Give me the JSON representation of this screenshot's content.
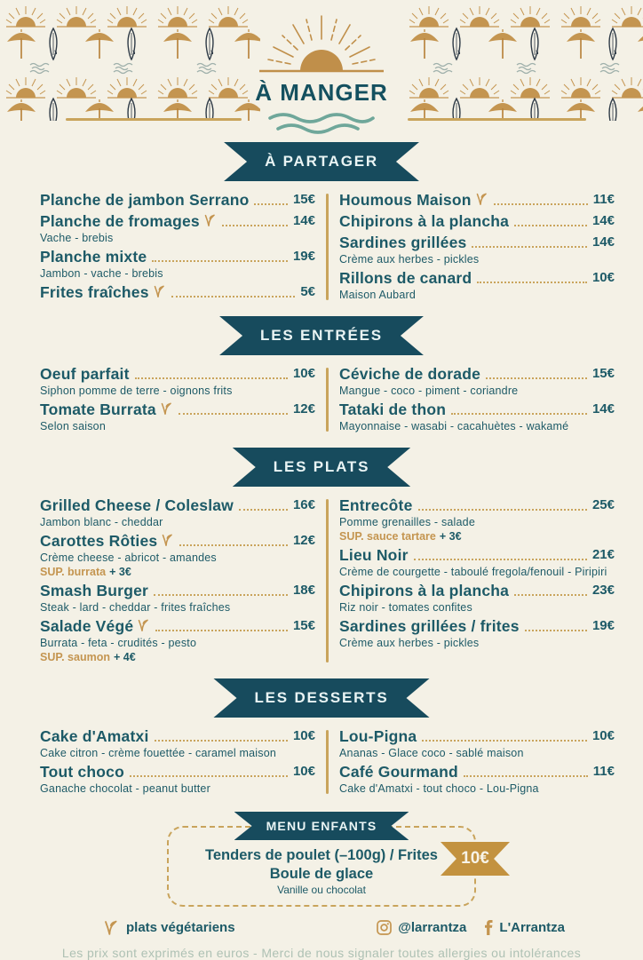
{
  "header": {
    "title": "À MANGER"
  },
  "sections": [
    {
      "title": "À PARTAGER",
      "columns": [
        [
          {
            "name": "Planche de jambon Serrano",
            "price": "15€",
            "veg": false
          },
          {
            "name": "Planche de fromages",
            "price": "14€",
            "veg": true,
            "desc": "Vache - brebis"
          },
          {
            "name": "Planche mixte",
            "price": "19€",
            "veg": false,
            "desc": "Jambon - vache - brebis"
          },
          {
            "name": "Frites fraîches",
            "price": "5€",
            "veg": true
          }
        ],
        [
          {
            "name": "Houmous Maison",
            "price": "11€",
            "veg": true
          },
          {
            "name": "Chipirons à la plancha",
            "price": "14€",
            "veg": false
          },
          {
            "name": "Sardines grillées",
            "price": "14€",
            "veg": false,
            "desc": "Crème aux herbes - pickles"
          },
          {
            "name": "Rillons de canard",
            "price": "10€",
            "veg": false,
            "desc": "Maison Aubard"
          }
        ]
      ]
    },
    {
      "title": "LES ENTRÉES",
      "columns": [
        [
          {
            "name": "Oeuf parfait",
            "price": "10€",
            "veg": false,
            "desc": "Siphon pomme de terre - oignons frits"
          },
          {
            "name": "Tomate Burrata",
            "price": "12€",
            "veg": true,
            "desc": "Selon saison"
          }
        ],
        [
          {
            "name": "Céviche de dorade",
            "price": "15€",
            "veg": false,
            "desc": "Mangue - coco - piment - coriandre"
          },
          {
            "name": "Tataki de thon",
            "price": "14€",
            "veg": false,
            "desc": "Mayonnaise - wasabi - cacahuètes - wakamé"
          }
        ]
      ]
    },
    {
      "title": "LES PLATS",
      "columns": [
        [
          {
            "name": "Grilled Cheese / Coleslaw",
            "price": "16€",
            "veg": false,
            "desc": "Jambon blanc - cheddar"
          },
          {
            "name": "Carottes Rôties",
            "price": "12€",
            "veg": true,
            "desc": "Crème cheese - abricot - amandes",
            "sup": {
              "label": "SUP. burrata",
              "extra": "+ 3€"
            }
          },
          {
            "name": "Smash Burger",
            "price": "18€",
            "veg": false,
            "desc": "Steak - lard - cheddar - frites fraîches"
          },
          {
            "name": "Salade Végé",
            "price": "15€",
            "veg": true,
            "desc": "Burrata - feta - crudités - pesto",
            "sup": {
              "label": "SUP. saumon",
              "extra": "+ 4€"
            }
          }
        ],
        [
          {
            "name": "Entrecôte",
            "price": "25€",
            "veg": false,
            "desc": "Pomme grenailles - salade",
            "sup": {
              "label": "SUP. sauce tartare",
              "extra": "+ 3€"
            }
          },
          {
            "name": "Lieu Noir",
            "price": "21€",
            "veg": false,
            "desc": "Crème de courgette - taboulé fregola/fenouil - Piripiri"
          },
          {
            "name": "Chipirons à la plancha",
            "price": "23€",
            "veg": false,
            "desc": "Riz noir - tomates confites"
          },
          {
            "name": "Sardines grillées / frites",
            "price": "19€",
            "veg": false,
            "desc": "Crème aux herbes - pickles"
          }
        ]
      ]
    },
    {
      "title": "LES DESSERTS",
      "columns": [
        [
          {
            "name": "Cake d'Amatxi",
            "price": "10€",
            "veg": false,
            "desc": "Cake citron - crème fouettée - caramel maison"
          },
          {
            "name": "Tout choco",
            "price": "10€",
            "veg": false,
            "desc": "Ganache chocolat - peanut butter"
          }
        ],
        [
          {
            "name": "Lou-Pigna",
            "price": "10€",
            "veg": false,
            "desc": "Ananas - Glace coco - sablé maison"
          },
          {
            "name": "Café Gourmand",
            "price": "11€",
            "veg": false,
            "desc": "Cake d'Amatxi - tout choco - Lou-Pigna"
          }
        ]
      ]
    }
  ],
  "kids_menu": {
    "title": "MENU ENFANTS",
    "line1": "Tenders de poulet (–100g) / Frites",
    "line2": "Boule de glace",
    "line3": "Vanille ou chocolat",
    "price": "10€"
  },
  "footer": {
    "veg_label": "plats végétariens",
    "instagram": "@larrantza",
    "facebook": "L'Arrantza",
    "note": "Les prix sont exprimés en euros - Merci de nous signaler toutes allergies ou intolérances"
  },
  "colors": {
    "background": "#f4f1e6",
    "teal_dark_banner": "#174b5d",
    "teal_text": "#1d5a67",
    "gold": "#c9a45c",
    "gold_sun": "#c49550",
    "badge_gold": "#c3923f",
    "wave_teal": "#6fa79a",
    "note_sage": "#aec1b4",
    "banner_text": "#e9f4f4"
  },
  "icons": {
    "header_pattern": [
      "sun-icon",
      "beach-umbrella-icon",
      "surfboard-icon",
      "wave-icon"
    ],
    "logo": [
      "sun-logo-icon",
      "waves-icon"
    ],
    "veg_marker": "veg-leaf-icon",
    "social": [
      "instagram-icon",
      "facebook-icon"
    ]
  }
}
